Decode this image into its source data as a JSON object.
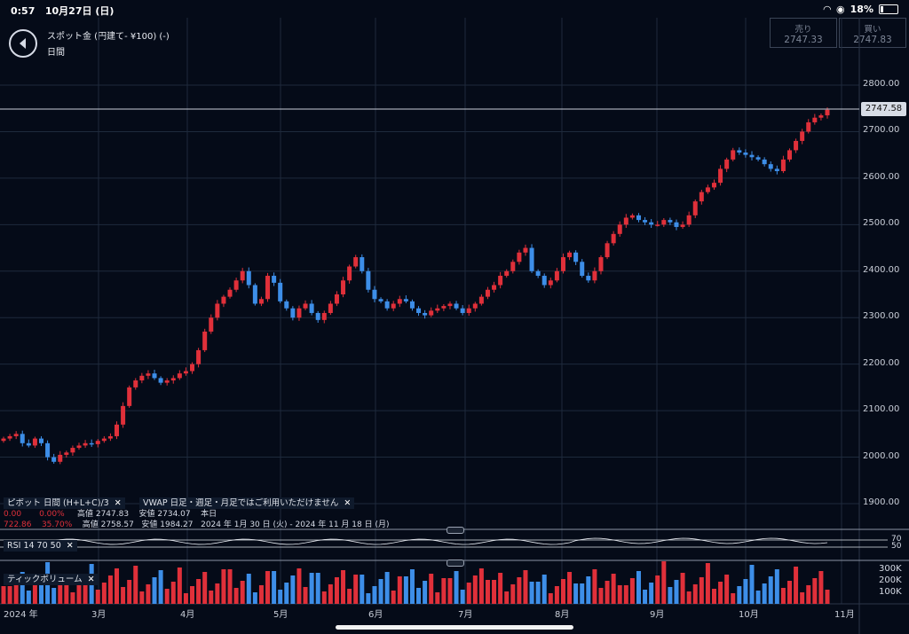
{
  "status": {
    "time": "0:57",
    "date": "10月27日 (日)",
    "battery": "18%"
  },
  "header": {
    "title": "スポット金 (円建て- ¥100) (-)",
    "period": "日間"
  },
  "quotes": {
    "sell_label": "売り",
    "sell_value": "2747.33",
    "buy_label": "買い",
    "buy_value": "2747.83"
  },
  "current_price": "2747.58",
  "y_axis": [
    "2800.00",
    "2700.00",
    "2600.00",
    "2500.00",
    "2400.00",
    "2300.00",
    "2200.00",
    "2100.00",
    "2000.00",
    "1900.00"
  ],
  "x_axis": [
    "2024 年",
    "3月",
    "4月",
    "5月",
    "6月",
    "7月",
    "8月",
    "9月",
    "10月",
    "11月"
  ],
  "indicators": {
    "pivot_label": "ピボット 日間 (H+L+C)/3",
    "vwap_label": "VWAP 日足・週足・月足ではご利用いただけません",
    "row1_a": "0.00",
    "row1_b": "0.00%",
    "row1_c": "高値 2747.83",
    "row1_d": "安値 2734.07",
    "row1_e": "本日",
    "row2_a": "722.86",
    "row2_b": "35.70%",
    "row2_c": "高値 2758.57",
    "row2_d": "安値 1984.27",
    "row2_e": "2024 年 1月 30 日 (火) - 2024 年 11 月 18 日 (月)"
  },
  "rsi": {
    "label": "RSI 14 70 50",
    "levels": [
      "70",
      "50"
    ]
  },
  "volume": {
    "label": "ティックボリューム",
    "levels": [
      "300K",
      "200K",
      "100K"
    ]
  },
  "colors": {
    "up": "#e0303a",
    "down": "#3d8ee8",
    "background": "#050b18",
    "grid": "#1e2a3c"
  },
  "chart_data": {
    "type": "candlestick",
    "title": "",
    "xlabel": "",
    "ylabel": "",
    "ylim": [
      1880,
      2830
    ],
    "approx_close_series": [
      2040,
      2045,
      2050,
      2030,
      2025,
      2040,
      2030,
      2000,
      1990,
      2005,
      2010,
      2020,
      2025,
      2030,
      2028,
      2035,
      2040,
      2045,
      2070,
      2110,
      2150,
      2165,
      2175,
      2180,
      2170,
      2160,
      2165,
      2170,
      2180,
      2185,
      2200,
      2230,
      2270,
      2300,
      2330,
      2345,
      2360,
      2380,
      2400,
      2370,
      2330,
      2340,
      2390,
      2375,
      2335,
      2320,
      2300,
      2320,
      2330,
      2310,
      2295,
      2310,
      2330,
      2350,
      2380,
      2410,
      2430,
      2400,
      2360,
      2340,
      2335,
      2320,
      2330,
      2340,
      2335,
      2320,
      2310,
      2305,
      2315,
      2320,
      2325,
      2330,
      2320,
      2310,
      2320,
      2330,
      2345,
      2360,
      2370,
      2390,
      2400,
      2420,
      2440,
      2450,
      2400,
      2390,
      2370,
      2380,
      2400,
      2430,
      2440,
      2420,
      2390,
      2380,
      2400,
      2430,
      2460,
      2480,
      2500,
      2515,
      2520,
      2510,
      2505,
      2500,
      2500,
      2510,
      2505,
      2495,
      2500,
      2520,
      2550,
      2570,
      2580,
      2590,
      2620,
      2640,
      2660,
      2655,
      2650,
      2645,
      2640,
      2630,
      2620,
      2615,
      2640,
      2660,
      2680,
      2700,
      2720,
      2730,
      2735,
      2747
    ],
    "rsi_levels": [
      70,
      50
    ],
    "volume_axis": [
      "300K",
      "200K",
      "100K"
    ]
  }
}
